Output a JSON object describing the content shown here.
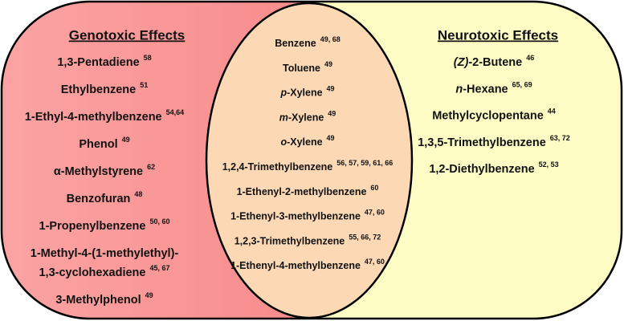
{
  "left": {
    "title": "Genotoxic Effects",
    "items": [
      {
        "name": "1,3-Pentadiene",
        "refs": "58"
      },
      {
        "name": "Ethylbenzene",
        "refs": "51"
      },
      {
        "name": "1-Ethyl-4-methylbenzene",
        "refs": "54,64"
      },
      {
        "name": "Phenol",
        "refs": "49"
      },
      {
        "name": "α-Methylstyrene",
        "refs": "62"
      },
      {
        "name": "Benzofuran",
        "refs": "48"
      },
      {
        "name": "1-Propenylbenzene",
        "refs": "50, 60"
      },
      {
        "name": [
          "1-Methyl-4-(1-methylethyl)-",
          "1,3-cyclohexadiene"
        ],
        "refs": "45, 67"
      },
      {
        "name": "3-Methylphenol",
        "refs": "49"
      }
    ]
  },
  "center": {
    "items": [
      {
        "name": "Benzene",
        "refs": "49, 68"
      },
      {
        "name": "Toluene",
        "refs": "49"
      },
      {
        "prefix": "p",
        "name": "-Xylene",
        "refs": "49"
      },
      {
        "prefix": "m",
        "name": "-Xylene",
        "refs": "49"
      },
      {
        "prefix": "o",
        "name": "-Xylene",
        "refs": "49"
      },
      {
        "name": "1,2,4-Trimethylbenzene",
        "refs": "56, 57, 59, 61, 66"
      },
      {
        "name": "1-Ethenyl-2-methylbenzene",
        "refs": "60"
      },
      {
        "name": "1-Ethenyl-3-methylbenzene",
        "refs": "47, 60"
      },
      {
        "name": "1,2,3-Trimethylbenzene",
        "refs": "55, 66, 72"
      },
      {
        "name": "1-Ethenyl-4-methylbenzene",
        "refs": "47, 60"
      }
    ]
  },
  "right": {
    "title": "Neurotoxic Effects",
    "items": [
      {
        "prefix": "(Z)",
        "name": "-2-Butene",
        "refs": "46"
      },
      {
        "prefix": "n",
        "name": "-Hexane",
        "refs": "65, 69"
      },
      {
        "name": "Methylcyclopentane",
        "refs": "44"
      },
      {
        "name": "1,3,5-Trimethylbenzene",
        "refs": "63, 72"
      },
      {
        "name": "1,2-Diethylbenzene",
        "refs": "52, 53"
      }
    ]
  }
}
